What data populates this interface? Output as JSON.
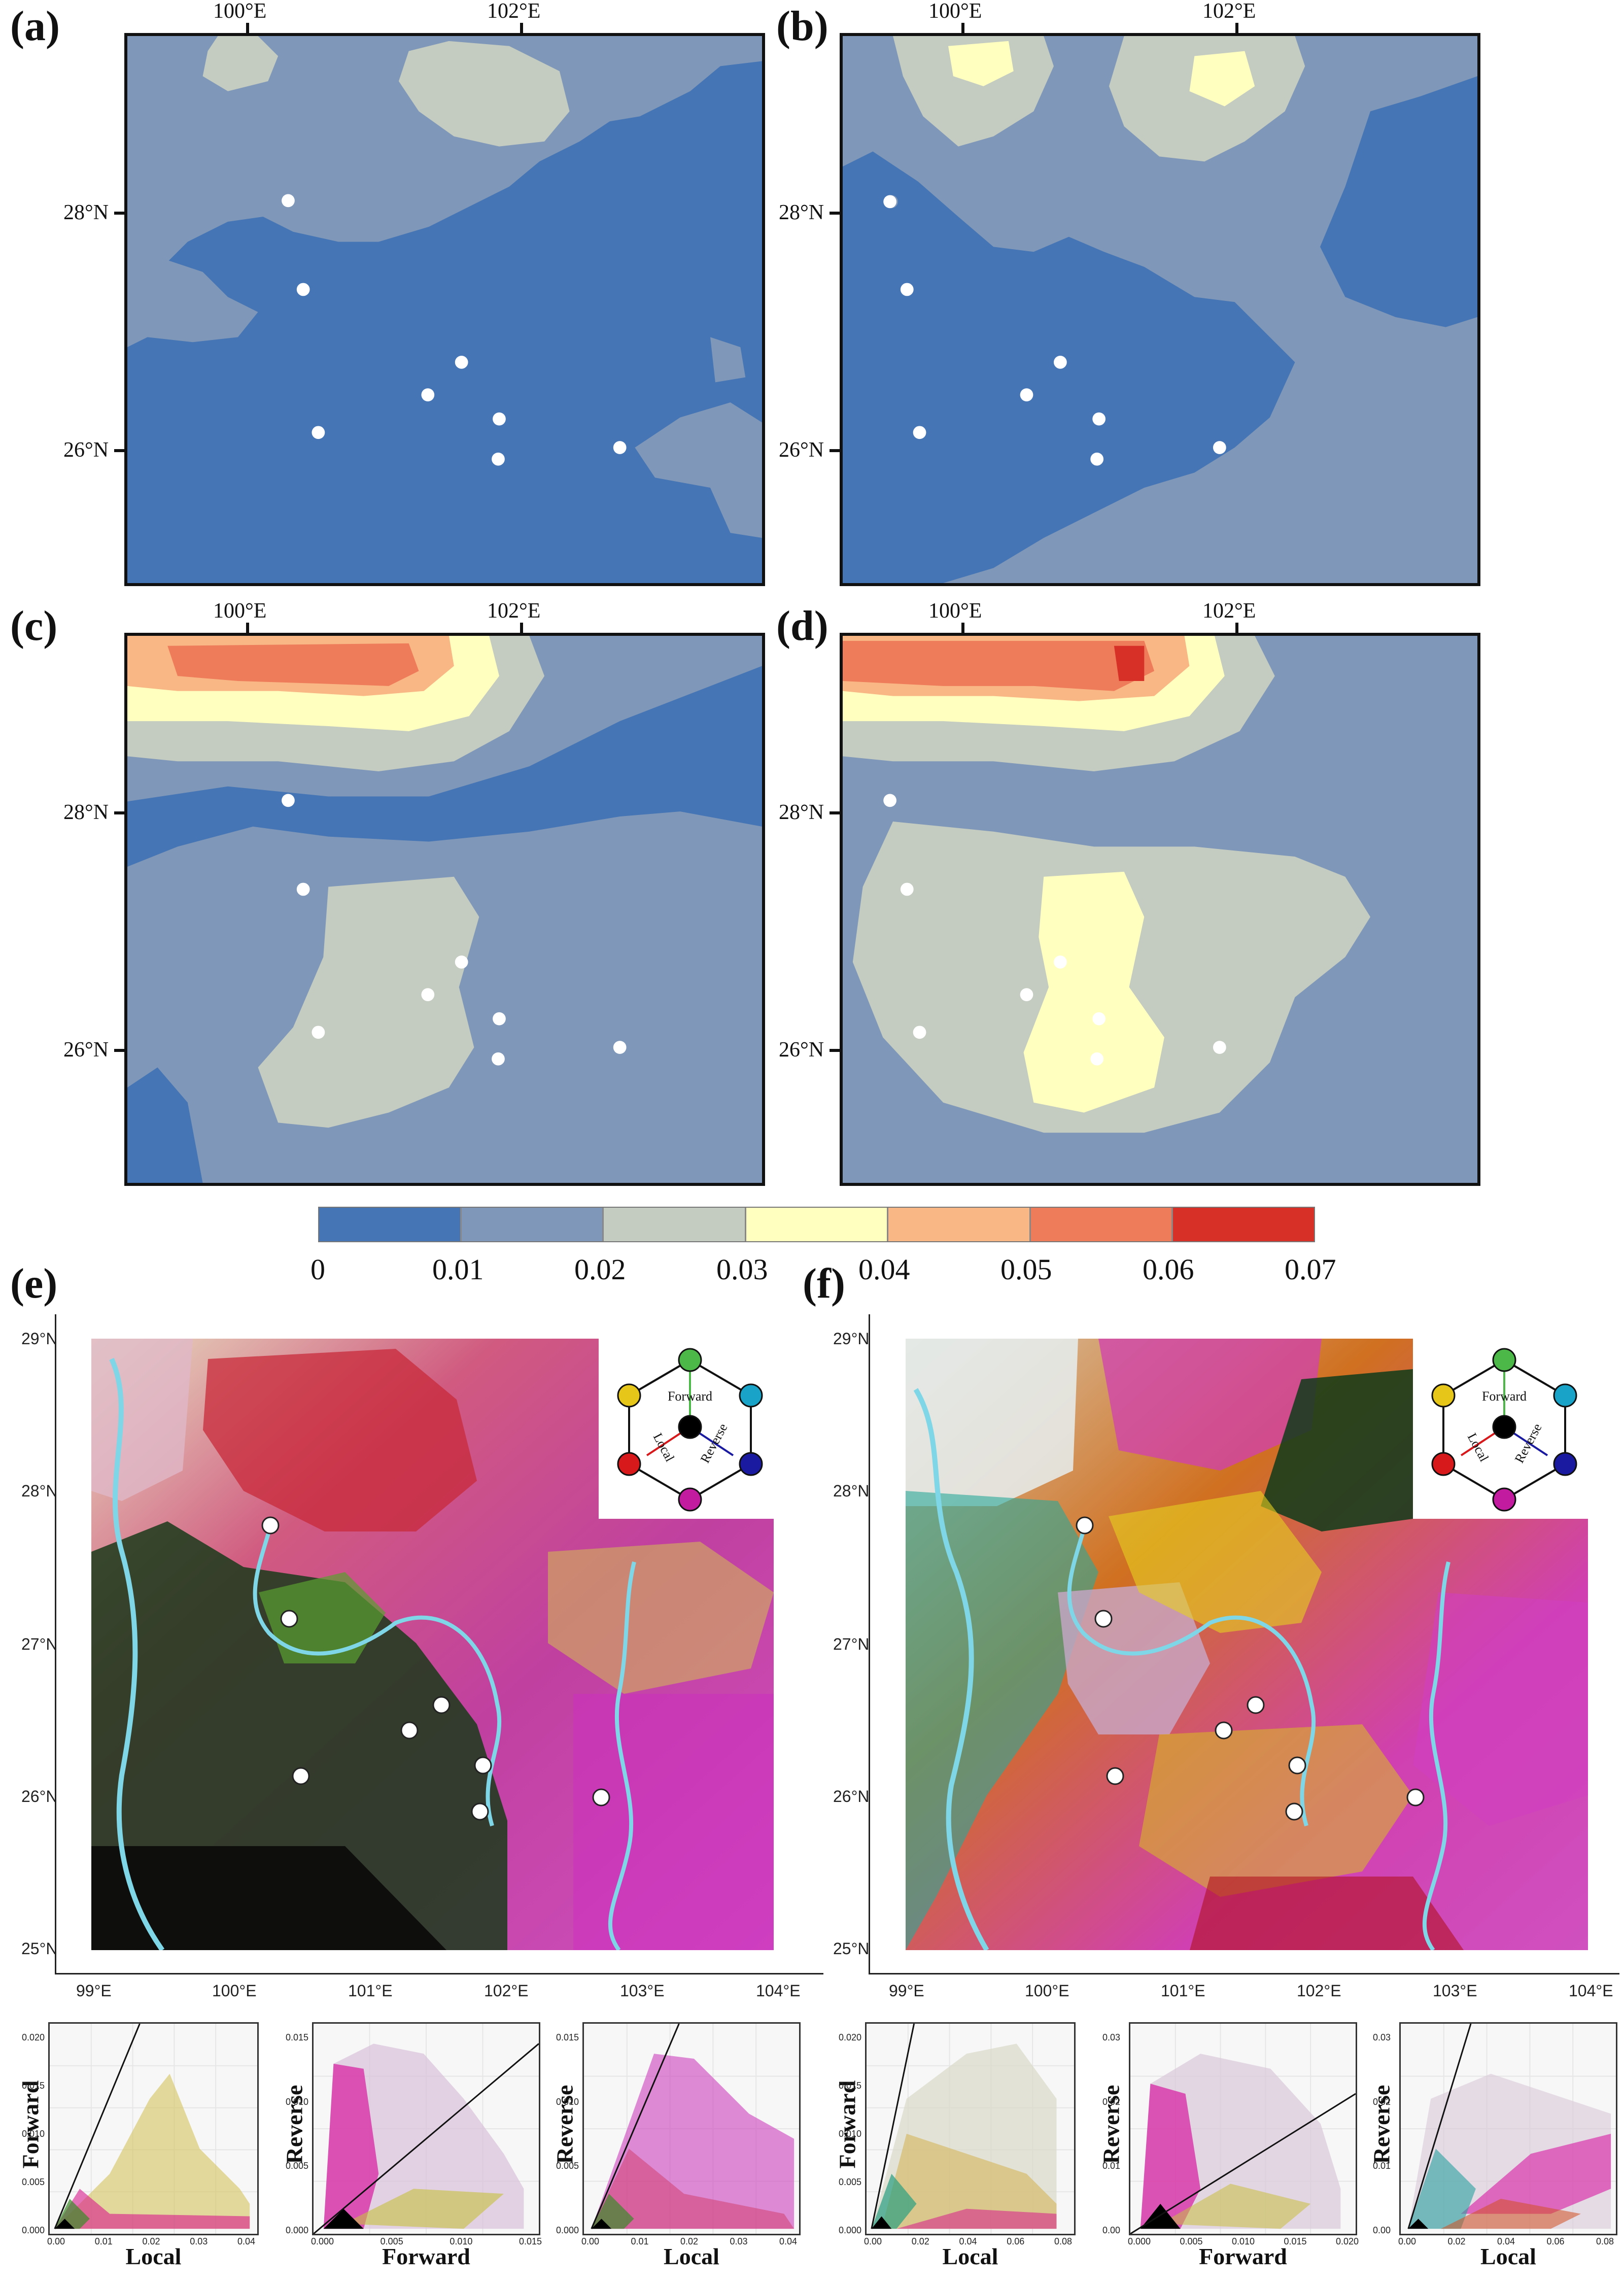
{
  "panels_top": {
    "a": {
      "letter": "(a)"
    },
    "b": {
      "letter": "(b)"
    },
    "c": {
      "letter": "(c)"
    },
    "d": {
      "letter": "(d)"
    }
  },
  "panels_bottom": {
    "e": {
      "letter": "(e)"
    },
    "f": {
      "letter": "(f)"
    }
  },
  "top_axes": {
    "lon_labels": [
      "100°E",
      "102°E"
    ],
    "lat_labels": [
      "28°N",
      "26°N"
    ]
  },
  "rgb_axes": {
    "lon_labels": [
      "99°E",
      "100°E",
      "101°E",
      "102°E",
      "103°E",
      "104°E"
    ],
    "lat_labels": [
      "29°N",
      "28°N",
      "27°N",
      "26°N",
      "25°N"
    ]
  },
  "colorbar": {
    "labels": [
      "0",
      "0.01",
      "0.02",
      "0.03",
      "0.04",
      "0.05",
      "0.06",
      "0.07"
    ],
    "colors": [
      "#4575b4",
      "#7f97b8",
      "#c4cbc0",
      "#ffffbf",
      "#f8b785",
      "#ee7b5a",
      "#d73027"
    ]
  },
  "legend": {
    "forward": "Forward",
    "local": "Local",
    "reverse": "Reverse",
    "node_colors": {
      "top": "#4cb848",
      "top_right": "#1aa3c8",
      "bottom_right": "#1a1aa0",
      "bottom": "#c31ba0",
      "bottom_left": "#d7191c",
      "top_left": "#e6c619",
      "center": "#000000"
    }
  },
  "scatter_plots": {
    "e": [
      {
        "xlabel": "Local",
        "ylabel": "Forward",
        "xticks": [
          "0.00",
          "0.01",
          "0.02",
          "0.03",
          "0.04"
        ],
        "yticks": [
          "0.000",
          "0.005",
          "0.010",
          "0.015",
          "0.020"
        ]
      },
      {
        "xlabel": "Forward",
        "ylabel": "Reverse",
        "xticks": [
          "0.000",
          "0.005",
          "0.010",
          "0.015"
        ],
        "yticks": [
          "0.000",
          "0.005",
          "0.010",
          "0.015"
        ]
      },
      {
        "xlabel": "Local",
        "ylabel": "Reverse",
        "xticks": [
          "0.00",
          "0.01",
          "0.02",
          "0.03",
          "0.04"
        ],
        "yticks": [
          "0.000",
          "0.005",
          "0.010",
          "0.015"
        ]
      }
    ],
    "f": [
      {
        "xlabel": "Local",
        "ylabel": "Forward",
        "xticks": [
          "0.00",
          "0.02",
          "0.04",
          "0.06",
          "0.08"
        ],
        "yticks": [
          "0.000",
          "0.005",
          "0.010",
          "0.015",
          "0.020"
        ]
      },
      {
        "xlabel": "Forward",
        "ylabel": "Reverse",
        "xticks": [
          "0.000",
          "0.005",
          "0.010",
          "0.015",
          "0.020"
        ],
        "yticks": [
          "0.00",
          "0.01",
          "0.02",
          "0.03"
        ]
      },
      {
        "xlabel": "Local",
        "ylabel": "Reverse",
        "xticks": [
          "0.00",
          "0.02",
          "0.04",
          "0.06",
          "0.08"
        ],
        "yticks": [
          "0.00",
          "0.01",
          "0.02",
          "0.03"
        ]
      }
    ]
  }
}
